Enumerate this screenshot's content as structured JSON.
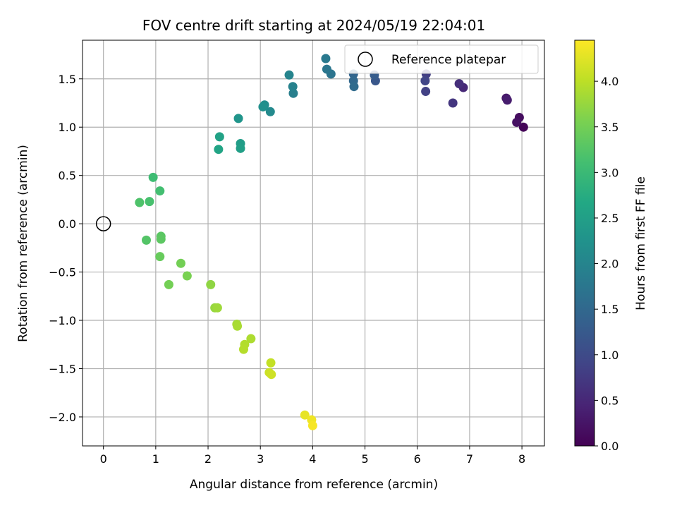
{
  "chart_data": {
    "type": "scatter",
    "title": "FOV centre drift starting at 2024/05/19 22:04:01",
    "xlabel": "Angular distance from reference (arcmin)",
    "ylabel": "Rotation from reference (arcmin)",
    "xlim": [
      -0.4,
      8.43
    ],
    "ylim": [
      -2.3,
      1.9
    ],
    "xticks": [
      0,
      1,
      2,
      3,
      4,
      5,
      6,
      7,
      8
    ],
    "yticks": [
      -2.0,
      -1.5,
      -1.0,
      -0.5,
      0.0,
      0.5,
      1.0,
      1.5
    ],
    "xtick_labels": [
      "0",
      "1",
      "2",
      "3",
      "4",
      "5",
      "6",
      "7",
      "8"
    ],
    "ytick_labels": [
      "−2.0",
      "−1.5",
      "−1.0",
      "−0.5",
      "0.0",
      "0.5",
      "1.0",
      "1.5"
    ],
    "grid": true,
    "legend": {
      "placement": "top-right",
      "entries": [
        "Reference platepar"
      ]
    },
    "reference_point": {
      "name": "Reference platepar",
      "x": 0,
      "y": 0
    },
    "colorbar": {
      "label": "Hours from first FF file",
      "colormap": "viridis",
      "range": [
        0.0,
        4.45
      ],
      "ticks": [
        0.0,
        0.5,
        1.0,
        1.5,
        2.0,
        2.5,
        3.0,
        3.5,
        4.0
      ],
      "tick_labels": [
        "0.0",
        "0.5",
        "1.0",
        "1.5",
        "2.0",
        "2.5",
        "3.0",
        "3.5",
        "4.0"
      ]
    },
    "points": [
      {
        "x": 8.03,
        "y": 1.0,
        "t": 0.05
      },
      {
        "x": 7.95,
        "y": 1.1,
        "t": 0.15
      },
      {
        "x": 7.9,
        "y": 1.05,
        "t": 0.2
      },
      {
        "x": 7.7,
        "y": 1.3,
        "t": 0.3
      },
      {
        "x": 7.72,
        "y": 1.28,
        "t": 0.35
      },
      {
        "x": 6.88,
        "y": 1.41,
        "t": 0.5
      },
      {
        "x": 6.8,
        "y": 1.45,
        "t": 0.6
      },
      {
        "x": 6.68,
        "y": 1.25,
        "t": 0.7
      },
      {
        "x": 6.17,
        "y": 1.55,
        "t": 0.8
      },
      {
        "x": 6.16,
        "y": 1.37,
        "t": 0.85
      },
      {
        "x": 6.15,
        "y": 1.48,
        "t": 0.9
      },
      {
        "x": 5.2,
        "y": 1.48,
        "t": 1.2
      },
      {
        "x": 5.18,
        "y": 1.54,
        "t": 1.3
      },
      {
        "x": 4.78,
        "y": 1.55,
        "t": 1.45
      },
      {
        "x": 4.78,
        "y": 1.48,
        "t": 1.5
      },
      {
        "x": 4.79,
        "y": 1.42,
        "t": 1.55
      },
      {
        "x": 4.35,
        "y": 1.55,
        "t": 1.7
      },
      {
        "x": 4.27,
        "y": 1.6,
        "t": 1.75
      },
      {
        "x": 4.25,
        "y": 1.71,
        "t": 1.8
      },
      {
        "x": 3.63,
        "y": 1.35,
        "t": 1.9
      },
      {
        "x": 3.62,
        "y": 1.42,
        "t": 1.95
      },
      {
        "x": 3.55,
        "y": 1.54,
        "t": 2.0
      },
      {
        "x": 3.19,
        "y": 1.16,
        "t": 2.1
      },
      {
        "x": 3.08,
        "y": 1.23,
        "t": 2.15
      },
      {
        "x": 3.05,
        "y": 1.21,
        "t": 2.2
      },
      {
        "x": 2.58,
        "y": 1.09,
        "t": 2.3
      },
      {
        "x": 2.62,
        "y": 0.83,
        "t": 2.45
      },
      {
        "x": 2.62,
        "y": 0.78,
        "t": 2.5
      },
      {
        "x": 2.22,
        "y": 0.9,
        "t": 2.55
      },
      {
        "x": 2.2,
        "y": 0.77,
        "t": 2.6
      },
      {
        "x": 0.95,
        "y": 0.48,
        "t": 3.05
      },
      {
        "x": 1.08,
        "y": 0.34,
        "t": 3.1
      },
      {
        "x": 0.88,
        "y": 0.23,
        "t": 3.15
      },
      {
        "x": 0.69,
        "y": 0.22,
        "t": 3.2
      },
      {
        "x": 0.82,
        "y": -0.17,
        "t": 3.25
      },
      {
        "x": 1.1,
        "y": -0.13,
        "t": 3.3
      },
      {
        "x": 1.1,
        "y": -0.16,
        "t": 3.32
      },
      {
        "x": 1.08,
        "y": -0.34,
        "t": 3.4
      },
      {
        "x": 1.48,
        "y": -0.41,
        "t": 3.5
      },
      {
        "x": 1.6,
        "y": -0.54,
        "t": 3.55
      },
      {
        "x": 1.25,
        "y": -0.63,
        "t": 3.5
      },
      {
        "x": 2.05,
        "y": -0.63,
        "t": 3.7
      },
      {
        "x": 2.13,
        "y": -0.87,
        "t": 3.75
      },
      {
        "x": 2.18,
        "y": -0.87,
        "t": 3.8
      },
      {
        "x": 2.55,
        "y": -1.04,
        "t": 3.85
      },
      {
        "x": 2.56,
        "y": -1.06,
        "t": 3.87
      },
      {
        "x": 2.82,
        "y": -1.19,
        "t": 3.9
      },
      {
        "x": 2.7,
        "y": -1.25,
        "t": 3.93
      },
      {
        "x": 2.68,
        "y": -1.3,
        "t": 3.95
      },
      {
        "x": 3.2,
        "y": -1.44,
        "t": 4.05
      },
      {
        "x": 3.17,
        "y": -1.54,
        "t": 4.1
      },
      {
        "x": 3.21,
        "y": -1.56,
        "t": 4.12
      },
      {
        "x": 3.85,
        "y": -1.98,
        "t": 4.3
      },
      {
        "x": 3.98,
        "y": -2.03,
        "t": 4.35
      },
      {
        "x": 4.0,
        "y": -2.09,
        "t": 4.4
      }
    ]
  }
}
